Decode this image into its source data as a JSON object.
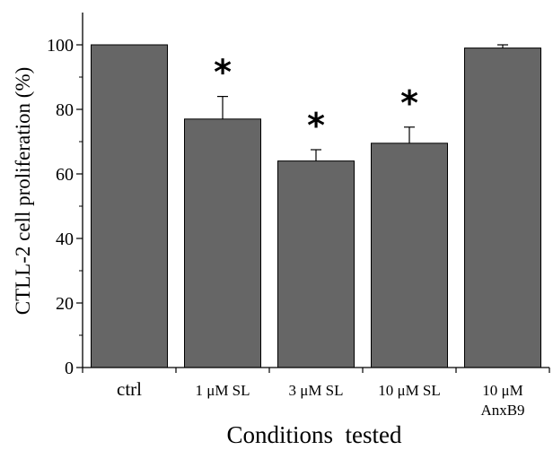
{
  "chart_data": {
    "type": "bar",
    "categories": [
      [
        "ctrl"
      ],
      [
        "1 μM SL"
      ],
      [
        "3 μM SL"
      ],
      [
        "10 μM SL"
      ],
      [
        "10 μM",
        "AnxB9"
      ]
    ],
    "values": [
      100,
      77,
      64,
      69.5,
      99
    ],
    "errors": [
      0,
      7,
      3.5,
      5,
      1
    ],
    "significance": [
      "",
      "*",
      "*",
      "*",
      ""
    ],
    "title": "",
    "xlabel": "Conditions  tested",
    "ylabel": "CTLL-2 cell proliferation (%)",
    "ylim": [
      0,
      110
    ],
    "yticks": [
      0,
      20,
      40,
      60,
      80,
      100
    ],
    "yticks_minor": [
      10,
      30,
      50,
      70,
      90
    ],
    "grid": false,
    "bar_color": "#666666",
    "bar_edge_color": "#000000"
  }
}
